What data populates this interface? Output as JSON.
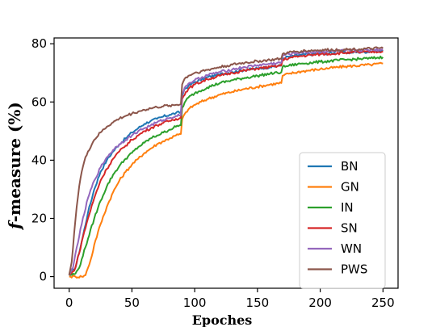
{
  "chart_data": {
    "type": "line",
    "xlabel": "Epoches",
    "ylabel_italic": "f",
    "ylabel_rest": "-measure (%)",
    "xlim": [
      -12,
      262
    ],
    "ylim": [
      -4,
      82
    ],
    "xticks": [
      0,
      50,
      100,
      150,
      200,
      250
    ],
    "yticks": [
      0,
      20,
      40,
      60,
      80
    ],
    "grid": false,
    "legend_position": "lower right",
    "series": [
      {
        "name": "BN",
        "color": "#1f77b4",
        "points": [
          [
            0,
            1
          ],
          [
            5,
            3
          ],
          [
            10,
            12
          ],
          [
            15,
            22
          ],
          [
            20,
            30
          ],
          [
            25,
            36
          ],
          [
            30,
            40
          ],
          [
            35,
            43
          ],
          [
            40,
            45.5
          ],
          [
            45,
            47.5
          ],
          [
            50,
            49.5
          ],
          [
            55,
            51
          ],
          [
            60,
            52.5
          ],
          [
            65,
            53.5
          ],
          [
            70,
            54.2
          ],
          [
            75,
            55
          ],
          [
            80,
            55.6
          ],
          [
            85,
            56.2
          ],
          [
            89,
            56.5
          ],
          [
            90,
            62
          ],
          [
            92,
            64.5
          ],
          [
            95,
            65.5
          ],
          [
            100,
            66.8
          ],
          [
            110,
            68.5
          ],
          [
            120,
            69.5
          ],
          [
            130,
            70.3
          ],
          [
            140,
            71
          ],
          [
            150,
            71.5
          ],
          [
            160,
            72
          ],
          [
            169,
            72.5
          ],
          [
            170,
            75
          ],
          [
            175,
            75.6
          ],
          [
            185,
            76.2
          ],
          [
            200,
            76.6
          ],
          [
            220,
            77
          ],
          [
            240,
            77.3
          ],
          [
            250,
            77.5
          ]
        ]
      },
      {
        "name": "GN",
        "color": "#ff7f0e",
        "points": [
          [
            0,
            0
          ],
          [
            5,
            0
          ],
          [
            10,
            0
          ],
          [
            13,
            0.5
          ],
          [
            15,
            3
          ],
          [
            18,
            7
          ],
          [
            20,
            11
          ],
          [
            25,
            18
          ],
          [
            30,
            24
          ],
          [
            35,
            29
          ],
          [
            40,
            33
          ],
          [
            45,
            36
          ],
          [
            50,
            38.5
          ],
          [
            55,
            40.5
          ],
          [
            60,
            42.5
          ],
          [
            65,
            44
          ],
          [
            70,
            45.5
          ],
          [
            75,
            46.5
          ],
          [
            80,
            47.5
          ],
          [
            85,
            48.5
          ],
          [
            89,
            49
          ],
          [
            90,
            54
          ],
          [
            93,
            56.5
          ],
          [
            95,
            57.5
          ],
          [
            100,
            59
          ],
          [
            110,
            61
          ],
          [
            120,
            62.5
          ],
          [
            130,
            63.5
          ],
          [
            140,
            64.5
          ],
          [
            150,
            65.2
          ],
          [
            160,
            66
          ],
          [
            169,
            66.5
          ],
          [
            170,
            69
          ],
          [
            175,
            69.7
          ],
          [
            185,
            70.5
          ],
          [
            200,
            71.3
          ],
          [
            220,
            72.2
          ],
          [
            240,
            72.8
          ],
          [
            250,
            73.2
          ]
        ]
      },
      {
        "name": "IN",
        "color": "#2ca02c",
        "points": [
          [
            0,
            0.5
          ],
          [
            5,
            1
          ],
          [
            8,
            3
          ],
          [
            10,
            6
          ],
          [
            15,
            13
          ],
          [
            20,
            20
          ],
          [
            25,
            26
          ],
          [
            30,
            31
          ],
          [
            35,
            35
          ],
          [
            40,
            38
          ],
          [
            45,
            40.5
          ],
          [
            50,
            42.5
          ],
          [
            55,
            44.5
          ],
          [
            60,
            46
          ],
          [
            65,
            47.5
          ],
          [
            70,
            48.5
          ],
          [
            75,
            49.5
          ],
          [
            80,
            50.5
          ],
          [
            85,
            51.5
          ],
          [
            89,
            52
          ],
          [
            90,
            58
          ],
          [
            93,
            60.5
          ],
          [
            95,
            61.5
          ],
          [
            100,
            63
          ],
          [
            110,
            65
          ],
          [
            120,
            66.5
          ],
          [
            130,
            67.5
          ],
          [
            140,
            68.3
          ],
          [
            150,
            69
          ],
          [
            160,
            69.7
          ],
          [
            169,
            70.2
          ],
          [
            170,
            72
          ],
          [
            175,
            72.5
          ],
          [
            185,
            73.2
          ],
          [
            200,
            73.8
          ],
          [
            220,
            74.5
          ],
          [
            240,
            75
          ],
          [
            250,
            75.4
          ]
        ]
      },
      {
        "name": "SN",
        "color": "#d62728",
        "points": [
          [
            0,
            0.5
          ],
          [
            4,
            2
          ],
          [
            8,
            8
          ],
          [
            10,
            12
          ],
          [
            15,
            20
          ],
          [
            20,
            27
          ],
          [
            25,
            33
          ],
          [
            30,
            37
          ],
          [
            35,
            40.5
          ],
          [
            40,
            43
          ],
          [
            45,
            45
          ],
          [
            50,
            47
          ],
          [
            55,
            48.5
          ],
          [
            60,
            50
          ],
          [
            65,
            51
          ],
          [
            70,
            52
          ],
          [
            75,
            52.8
          ],
          [
            80,
            53.5
          ],
          [
            85,
            54.2
          ],
          [
            89,
            54.5
          ],
          [
            90,
            61
          ],
          [
            93,
            63.5
          ],
          [
            95,
            64.5
          ],
          [
            100,
            66
          ],
          [
            110,
            67.8
          ],
          [
            120,
            69
          ],
          [
            130,
            70
          ],
          [
            140,
            70.8
          ],
          [
            150,
            71.5
          ],
          [
            160,
            72
          ],
          [
            169,
            72.5
          ],
          [
            170,
            74.5
          ],
          [
            175,
            75.1
          ],
          [
            185,
            75.8
          ],
          [
            200,
            76.4
          ],
          [
            220,
            76.9
          ],
          [
            240,
            77.2
          ],
          [
            250,
            77.4
          ]
        ]
      },
      {
        "name": "WN",
        "color": "#9467bd",
        "points": [
          [
            0,
            0.5
          ],
          [
            3,
            3
          ],
          [
            6,
            10
          ],
          [
            10,
            18
          ],
          [
            15,
            27
          ],
          [
            20,
            33
          ],
          [
            25,
            37.5
          ],
          [
            30,
            41
          ],
          [
            35,
            43.5
          ],
          [
            40,
            45.5
          ],
          [
            45,
            47
          ],
          [
            50,
            48.5
          ],
          [
            55,
            50
          ],
          [
            60,
            51
          ],
          [
            65,
            52
          ],
          [
            70,
            53
          ],
          [
            75,
            53.8
          ],
          [
            80,
            54.5
          ],
          [
            85,
            55.2
          ],
          [
            89,
            55.5
          ],
          [
            90,
            63
          ],
          [
            93,
            65.5
          ],
          [
            95,
            66.3
          ],
          [
            100,
            67.5
          ],
          [
            110,
            69.2
          ],
          [
            120,
            70.3
          ],
          [
            130,
            71.2
          ],
          [
            140,
            72
          ],
          [
            150,
            72.6
          ],
          [
            160,
            73.1
          ],
          [
            169,
            73.5
          ],
          [
            170,
            76
          ],
          [
            175,
            76.5
          ],
          [
            185,
            77
          ],
          [
            200,
            77.3
          ],
          [
            220,
            77.6
          ],
          [
            240,
            77.9
          ],
          [
            250,
            78
          ]
        ]
      },
      {
        "name": "PWS",
        "color": "#8c564b",
        "points": [
          [
            0,
            0.5
          ],
          [
            2,
            5
          ],
          [
            4,
            15
          ],
          [
            6,
            24
          ],
          [
            8,
            31
          ],
          [
            10,
            36
          ],
          [
            12,
            39.5
          ],
          [
            15,
            43
          ],
          [
            20,
            47
          ],
          [
            25,
            49.5
          ],
          [
            30,
            51.5
          ],
          [
            35,
            53
          ],
          [
            40,
            54.3
          ],
          [
            45,
            55.2
          ],
          [
            50,
            56
          ],
          [
            55,
            56.7
          ],
          [
            60,
            57.3
          ],
          [
            65,
            57.8
          ],
          [
            70,
            58.2
          ],
          [
            75,
            58.5
          ],
          [
            80,
            58.8
          ],
          [
            85,
            59
          ],
          [
            89,
            59.3
          ],
          [
            90,
            66
          ],
          [
            92,
            68
          ],
          [
            95,
            69
          ],
          [
            100,
            70
          ],
          [
            110,
            71
          ],
          [
            120,
            72
          ],
          [
            130,
            72.8
          ],
          [
            140,
            73.5
          ],
          [
            150,
            74
          ],
          [
            160,
            74.4
          ],
          [
            169,
            74.8
          ],
          [
            170,
            76.5
          ],
          [
            175,
            77
          ],
          [
            185,
            77.5
          ],
          [
            200,
            77.8
          ],
          [
            220,
            78
          ],
          [
            240,
            78.3
          ],
          [
            250,
            78.5
          ]
        ]
      }
    ]
  }
}
